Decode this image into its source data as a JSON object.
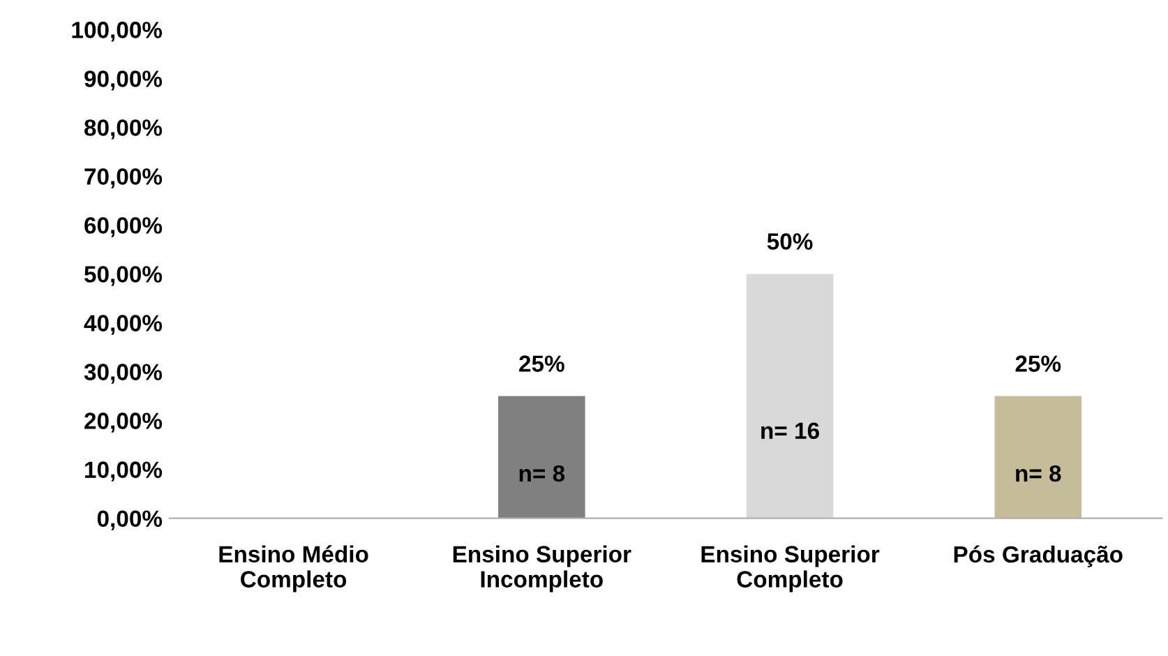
{
  "chart_data": {
    "type": "bar",
    "categories": [
      "Ensino Médio\nCompleto",
      "Ensino Superior\nIncompleto",
      "Ensino Superior\nCompleto",
      "Pós Graduação"
    ],
    "values": [
      0,
      25,
      50,
      25
    ],
    "colors": [
      "#808080",
      "#808080",
      "#d9d9d9",
      "#c4bd97"
    ],
    "value_labels": [
      null,
      "25%",
      "50%",
      "25%"
    ],
    "ylim": [
      0,
      100
    ],
    "yticks": [
      {
        "value": 0,
        "label": "0,00%"
      },
      {
        "value": 10,
        "label": "10,00%"
      },
      {
        "value": 20,
        "label": "20,00%"
      },
      {
        "value": 30,
        "label": "30,00%"
      },
      {
        "value": 40,
        "label": "40,00%"
      },
      {
        "value": 50,
        "label": "50,00%"
      },
      {
        "value": 60,
        "label": "60,00%"
      },
      {
        "value": 70,
        "label": "70,00%"
      },
      {
        "value": 80,
        "label": "80,00%"
      },
      {
        "value": 90,
        "label": "90,00%"
      },
      {
        "value": 100,
        "label": "100,00%"
      }
    ],
    "annotations": [
      "n= 8",
      "n= 16",
      "n= 8"
    ],
    "grid": false,
    "legend": false
  }
}
